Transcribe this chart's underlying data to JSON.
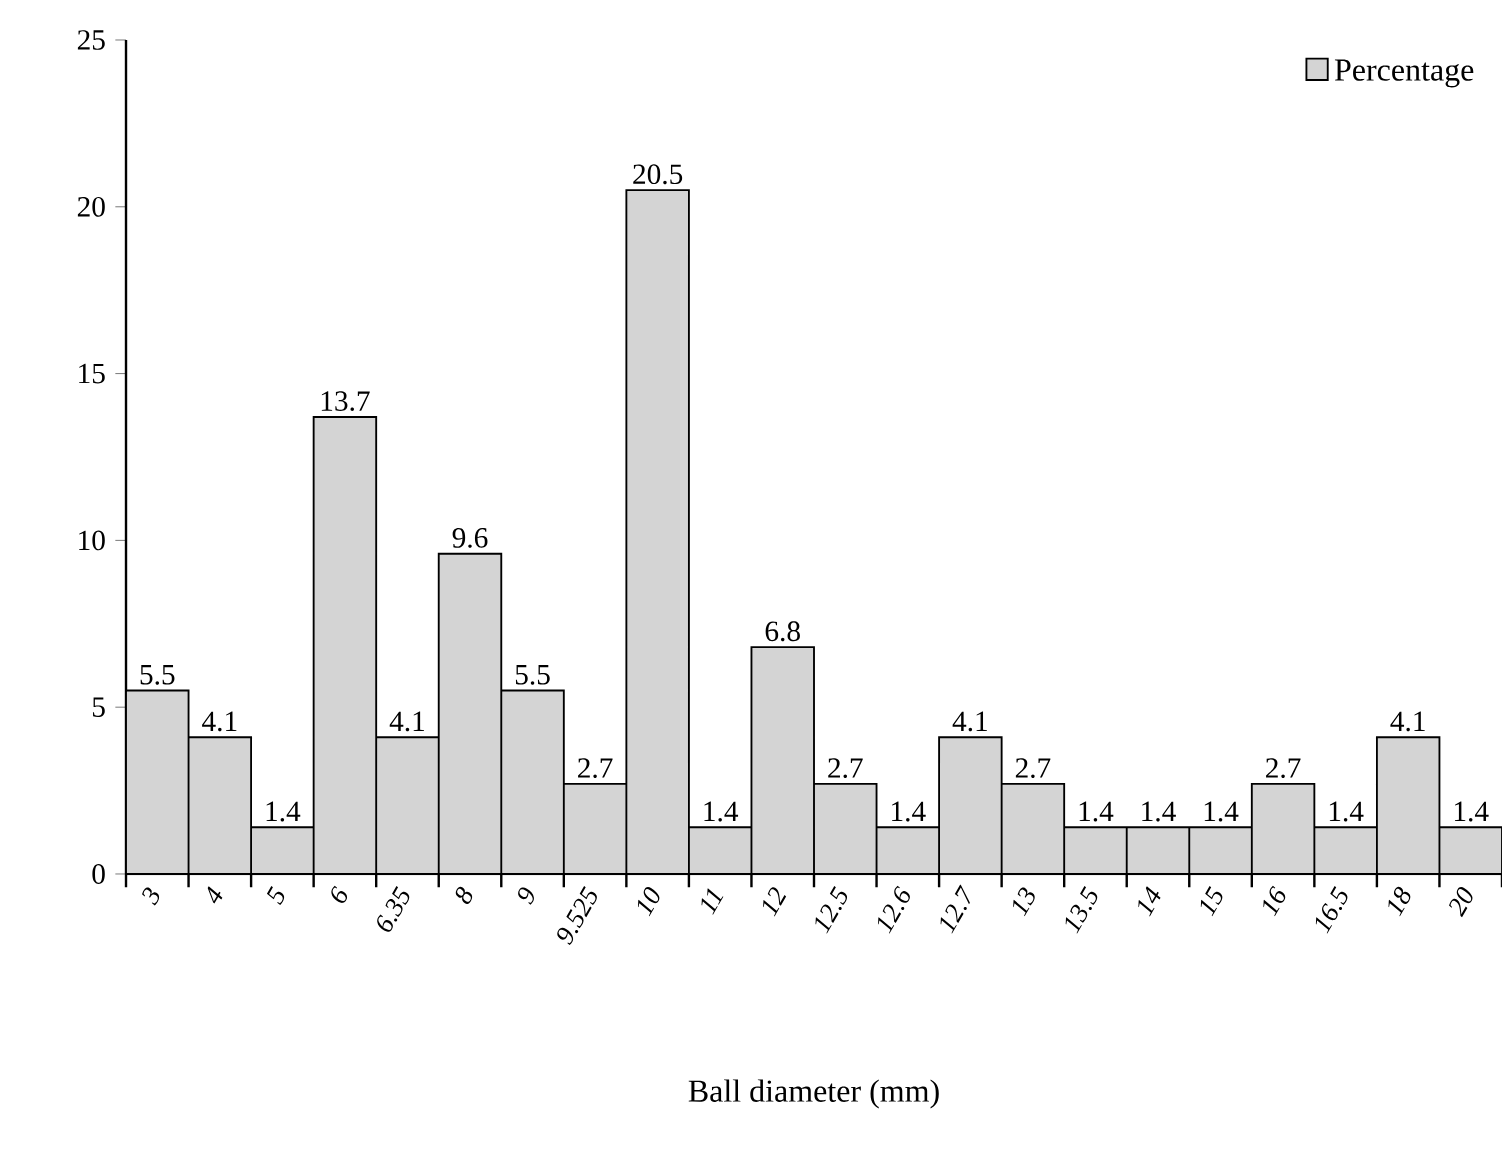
{
  "chart_data": {
    "type": "bar",
    "xlabel": "Ball diameter (mm)",
    "categories": [
      "3",
      "4",
      "5",
      "6",
      "6.35",
      "8",
      "9",
      "9.525",
      "10",
      "11",
      "12",
      "12.5",
      "12.6",
      "12.7",
      "13",
      "13.5",
      "14",
      "15",
      "16",
      "16.5",
      "18",
      "20"
    ],
    "series": [
      {
        "name": "Percentage",
        "color": "#d4d4d4",
        "values": [
          5.5,
          4.1,
          1.4,
          13.7,
          4.1,
          9.6,
          5.5,
          2.7,
          20.5,
          1.4,
          6.8,
          2.7,
          1.4,
          4.1,
          2.7,
          1.4,
          1.4,
          1.4,
          2.7,
          1.4,
          4.1,
          1.4
        ],
        "value_labels": [
          "5.5",
          "4.1",
          "1.4",
          "13.7",
          "4.1",
          "9.6",
          "5.5",
          "2.7",
          "20.5",
          "1.4",
          "6.8",
          "2.7",
          "1.4",
          "4.1",
          "2.7",
          "1.4",
          "1.4",
          "1.4",
          "2.7",
          "1.4",
          "4.1",
          "1.4"
        ]
      }
    ],
    "ylim": [
      0,
      25
    ],
    "yticks": [
      0,
      5,
      10,
      15,
      20,
      25
    ],
    "grid": false,
    "legend": "top right"
  }
}
